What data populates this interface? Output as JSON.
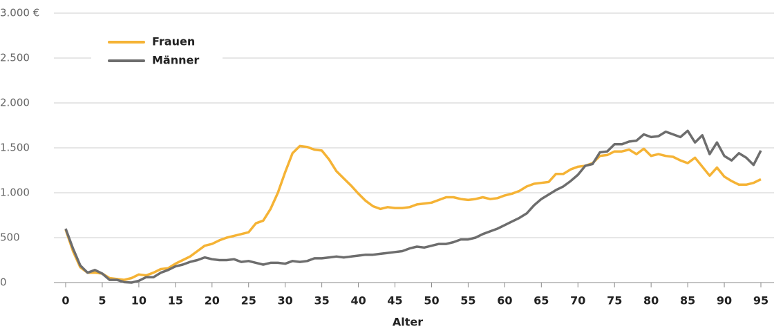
{
  "chart_data": {
    "type": "line",
    "x_label": "Alter",
    "x": [
      0,
      1,
      2,
      3,
      4,
      5,
      6,
      7,
      8,
      9,
      10,
      11,
      12,
      13,
      14,
      15,
      16,
      17,
      18,
      19,
      20,
      21,
      22,
      23,
      24,
      25,
      26,
      27,
      28,
      29,
      30,
      31,
      32,
      33,
      34,
      35,
      36,
      37,
      38,
      39,
      40,
      41,
      42,
      43,
      44,
      45,
      46,
      47,
      48,
      49,
      50,
      51,
      52,
      53,
      54,
      55,
      56,
      57,
      58,
      59,
      60,
      61,
      62,
      63,
      64,
      65,
      66,
      67,
      68,
      69,
      70,
      71,
      72,
      73,
      74,
      75,
      76,
      77,
      78,
      79,
      80,
      81,
      82,
      83,
      84,
      85,
      86,
      87,
      88,
      89,
      90,
      91,
      92,
      93,
      94,
      95
    ],
    "series": [
      {
        "name": "Frauen",
        "color": "#f5b335",
        "values": [
          590,
          350,
          170,
          110,
          110,
          100,
          50,
          40,
          30,
          50,
          90,
          80,
          110,
          150,
          160,
          210,
          250,
          290,
          350,
          410,
          430,
          470,
          500,
          520,
          540,
          560,
          660,
          690,
          820,
          1000,
          1230,
          1440,
          1520,
          1510,
          1480,
          1470,
          1370,
          1240,
          1160,
          1080,
          990,
          910,
          850,
          820,
          840,
          830,
          830,
          840,
          870,
          880,
          890,
          920,
          950,
          950,
          930,
          920,
          930,
          950,
          930,
          940,
          970,
          990,
          1020,
          1070,
          1100,
          1110,
          1120,
          1210,
          1210,
          1260,
          1290,
          1300,
          1330,
          1410,
          1420,
          1460,
          1460,
          1480,
          1430,
          1490,
          1410,
          1430,
          1410,
          1400,
          1360,
          1330,
          1390,
          1290,
          1190,
          1280,
          1180,
          1130,
          1090,
          1090,
          1110,
          1150
        ]
      },
      {
        "name": "Männer",
        "color": "#6d6d6d",
        "values": [
          600,
          380,
          190,
          110,
          140,
          100,
          30,
          30,
          5,
          0,
          20,
          60,
          60,
          110,
          140,
          180,
          200,
          230,
          250,
          280,
          260,
          250,
          250,
          260,
          230,
          240,
          220,
          200,
          220,
          220,
          210,
          240,
          230,
          240,
          270,
          270,
          280,
          290,
          280,
          290,
          300,
          310,
          310,
          320,
          330,
          340,
          350,
          380,
          400,
          390,
          410,
          430,
          430,
          450,
          480,
          480,
          500,
          540,
          570,
          600,
          640,
          680,
          720,
          770,
          860,
          930,
          980,
          1030,
          1070,
          1130,
          1200,
          1300,
          1320,
          1450,
          1460,
          1540,
          1540,
          1570,
          1580,
          1650,
          1620,
          1630,
          1680,
          1650,
          1620,
          1690,
          1560,
          1640,
          1430,
          1560,
          1410,
          1360,
          1440,
          1390,
          1310,
          1470
        ]
      }
    ],
    "xlim": [
      0,
      95
    ],
    "xticks": [
      0,
      5,
      10,
      15,
      20,
      25,
      30,
      35,
      40,
      45,
      50,
      55,
      60,
      65,
      70,
      75,
      80,
      85,
      90,
      95
    ],
    "ylim": [
      0,
      3000
    ],
    "yticks": [
      0,
      500,
      {
        "value": 1000,
        "label": "1.000"
      },
      {
        "value": 1500,
        "label": "1.500"
      },
      {
        "value": 2000,
        "label": "2.000"
      },
      {
        "value": 2500,
        "label": "2.500"
      },
      {
        "value": 3000,
        "label": "3.000 €"
      }
    ],
    "grid": true,
    "legend": "upper left"
  }
}
